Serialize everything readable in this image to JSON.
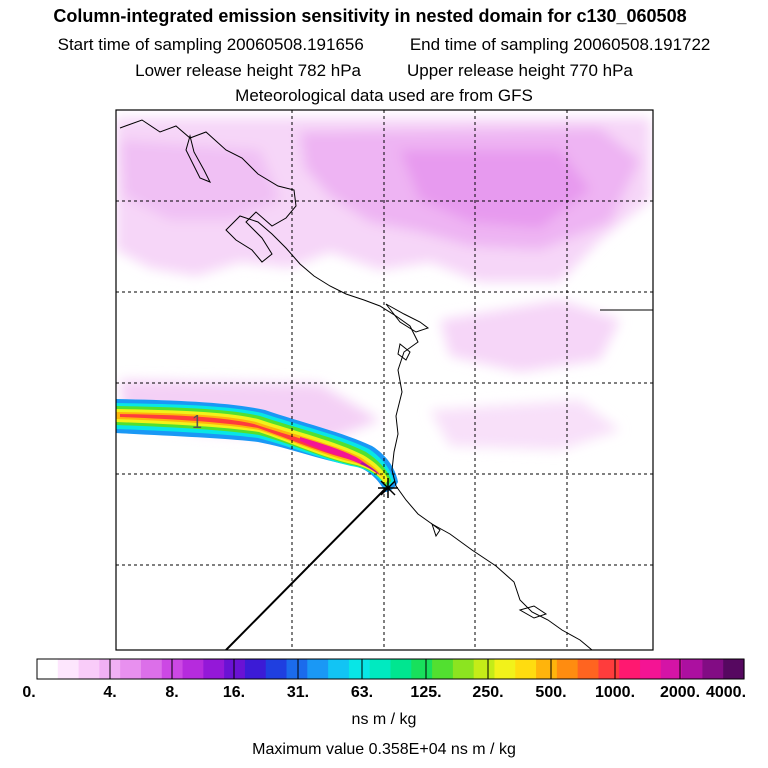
{
  "header": {
    "title": "Column-integrated emission sensitivity in nested domain for c130_060508",
    "start_time": "Start time of sampling 20060508.191656",
    "end_time": "End time of sampling 20060508.191722",
    "lower_height": "Lower release height  782 hPa",
    "upper_height": "Upper release height  770 hPa",
    "met_data": "Meteorological data used are from GFS"
  },
  "chart_data": {
    "type": "heatmap",
    "title": "Column-integrated emission sensitivity in nested domain for c130_060508",
    "colorbar": {
      "ticks": [
        "0.",
        "4.",
        "8.",
        "16.",
        "31.",
        "63.",
        "125.",
        "250.",
        "500.",
        "1000.",
        "2000.",
        "4000."
      ],
      "colors": [
        "#ffffff",
        "#fde6fd",
        "#f9ccf9",
        "#f1b0f4",
        "#e890ef",
        "#dc6fe9",
        "#cc48e4",
        "#b62bdd",
        "#9418d8",
        "#6a12d4",
        "#3c1bd6",
        "#1f3fe0",
        "#1b6bec",
        "#1a98f5",
        "#12c4f4",
        "#08e6e6",
        "#00eac0",
        "#00e690",
        "#18e05c",
        "#52e030",
        "#8ce420",
        "#c4ec18",
        "#f2f21a",
        "#ffdc10",
        "#ffb40c",
        "#ff8c10",
        "#ff6420",
        "#ff3c3c",
        "#ff1870",
        "#f41494",
        "#d414a6",
        "#ac10a0",
        "#820c84",
        "#560860"
      ],
      "unit_label": "ns m / kg"
    },
    "max_value_text": "Maximum value  0.358E+04 ns m / kg",
    "plume_marker_label": "1",
    "release_marker": "star"
  },
  "colors": {
    "background": "#ffffff",
    "frame": "#000000"
  }
}
